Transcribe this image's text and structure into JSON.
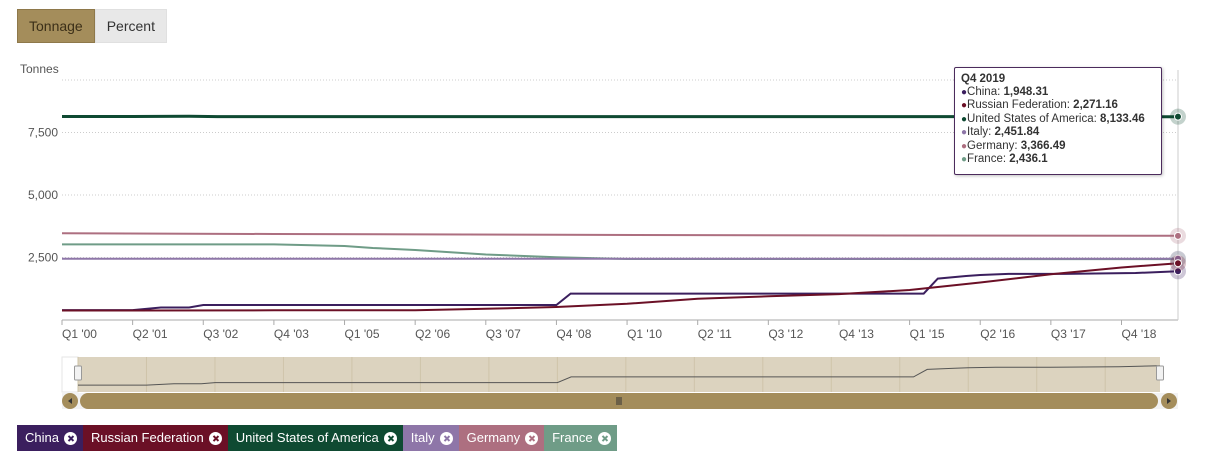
{
  "toggle": {
    "tonnage_label": "Tonnage",
    "percent_label": "Percent"
  },
  "colors": {
    "China": "#3b1f5e",
    "Russian Federation": "#6b1026",
    "United States of America": "#0f4a32",
    "Italy": "#8e76a8",
    "Germany": "#ad6f80",
    "France": "#6f9c87",
    "accent": "#a48d5b"
  },
  "tooltip": {
    "title": "Q4 2019",
    "rows": [
      {
        "name": "China",
        "value": "1,948.31"
      },
      {
        "name": "Russian Federation",
        "value": "2,271.16"
      },
      {
        "name": "United States of America",
        "value": "8,133.46"
      },
      {
        "name": "Italy",
        "value": "2,451.84"
      },
      {
        "name": "Germany",
        "value": "3,366.49"
      },
      {
        "name": "France",
        "value": "2,436.1"
      }
    ]
  },
  "legend": [
    "China",
    "Russian Federation",
    "United States of America",
    "Italy",
    "Germany",
    "France"
  ],
  "navigator": {
    "scroll_icon": "scroll-grip-icon",
    "left_arrow": "arrow-left-icon",
    "right_arrow": "arrow-right-icon"
  },
  "chart_data": {
    "type": "line",
    "ylabel": "Tonnes",
    "ylim": [
      0,
      9600
    ],
    "yticks": [
      2500,
      5000,
      7500
    ],
    "ytick_labels": [
      "2,500",
      "5,000",
      "7,500"
    ],
    "x_start": "Q1 '00",
    "x_end": "Q4 '19",
    "xtick_labels": [
      "Q1 '00",
      "Q2 '01",
      "Q3 '02",
      "Q4 '03",
      "Q1 '05",
      "Q2 '06",
      "Q3 '07",
      "Q4 '08",
      "Q1 '10",
      "Q2 '11",
      "Q3 '12",
      "Q4 '13",
      "Q1 '15",
      "Q2 '16",
      "Q3 '17",
      "Q4 '18"
    ],
    "grid": true,
    "series": [
      {
        "name": "United States of America",
        "points": [
          [
            "Q1 '00",
            8140
          ],
          [
            "Q2 '01",
            8140
          ],
          [
            "Q2 '02",
            8150
          ],
          [
            "Q4 '02",
            8135
          ],
          [
            "Q4 '19",
            8133.46
          ]
        ]
      },
      {
        "name": "Germany",
        "points": [
          [
            "Q1 '00",
            3470
          ],
          [
            "Q4 '03",
            3440
          ],
          [
            "Q4 '08",
            3410
          ],
          [
            "Q4 '13",
            3385
          ],
          [
            "Q4 '19",
            3366.49
          ]
        ]
      },
      {
        "name": "France",
        "points": [
          [
            "Q1 '00",
            3025
          ],
          [
            "Q4 '03",
            3025
          ],
          [
            "Q1 '05",
            2960
          ],
          [
            "Q3 '05",
            2880
          ],
          [
            "Q2 '06",
            2800
          ],
          [
            "Q3 '07",
            2620
          ],
          [
            "Q4 '08",
            2510
          ],
          [
            "Q1 '10",
            2440
          ],
          [
            "Q4 '19",
            2436.1
          ]
        ]
      },
      {
        "name": "Italy",
        "points": [
          [
            "Q1 '00",
            2452
          ],
          [
            "Q4 '19",
            2451.84
          ]
        ]
      },
      {
        "name": "China",
        "points": [
          [
            "Q1 '00",
            395
          ],
          [
            "Q2 '01",
            395
          ],
          [
            "Q4 '01",
            500
          ],
          [
            "Q2 '02",
            500
          ],
          [
            "Q3 '02",
            600
          ],
          [
            "Q4 '08",
            600
          ],
          [
            "Q1 '09",
            1054
          ],
          [
            "Q2 '15",
            1054
          ],
          [
            "Q3 '15",
            1658
          ],
          [
            "Q1 '16",
            1760
          ],
          [
            "Q2 '16",
            1800
          ],
          [
            "Q4 '16",
            1842
          ],
          [
            "Q2 '17",
            1842
          ],
          [
            "Q4 '17",
            1842
          ],
          [
            "Q1 '19",
            1880
          ],
          [
            "Q4 '19",
            1948.31
          ]
        ]
      },
      {
        "name": "Russian Federation",
        "points": [
          [
            "Q1 '00",
            380
          ],
          [
            "Q1 '01",
            380
          ],
          [
            "Q4 '03",
            390
          ],
          [
            "Q2 '06",
            390
          ],
          [
            "Q3 '07",
            450
          ],
          [
            "Q4 '08",
            520
          ],
          [
            "Q1 '10",
            650
          ],
          [
            "Q2 '11",
            850
          ],
          [
            "Q3 '12",
            950
          ],
          [
            "Q4 '13",
            1035
          ],
          [
            "Q1 '15",
            1200
          ],
          [
            "Q2 '16",
            1500
          ],
          [
            "Q3 '17",
            1830
          ],
          [
            "Q4 '18",
            2100
          ],
          [
            "Q4 '19",
            2271.16
          ]
        ]
      }
    ]
  }
}
